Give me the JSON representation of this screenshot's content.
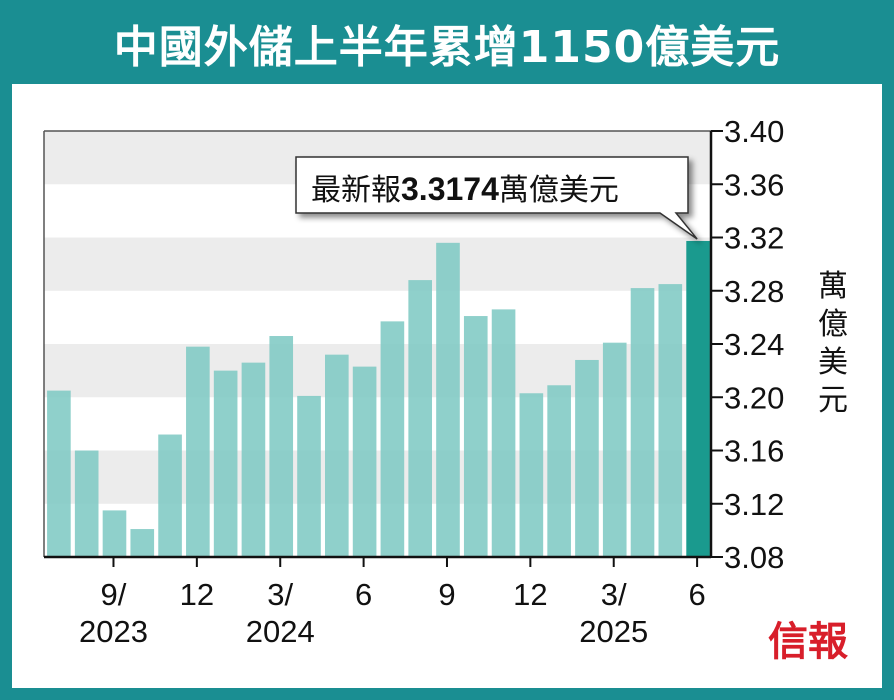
{
  "title": "中國外儲上半年累增1150億美元",
  "brand_text": "信報",
  "colors": {
    "frame": "#1a8e92",
    "bar": "#7fc9c4",
    "bar_highlight": "#1a9a8e",
    "band": "#ececec",
    "brand": "#d81e2a"
  },
  "chart_data": {
    "type": "bar",
    "unit_label": "萬億美元",
    "ylim": [
      3.08,
      3.4
    ],
    "y_ticks": [
      "3.40",
      "3.36",
      "3.32",
      "3.28",
      "3.24",
      "3.20",
      "3.16",
      "3.12",
      "3.08"
    ],
    "y_axis_side": "right",
    "grid": "alternating horizontal bands",
    "x_tick_labels": [
      {
        "index": 2,
        "lines": [
          "9/",
          "2023"
        ]
      },
      {
        "index": 5,
        "lines": [
          "12"
        ]
      },
      {
        "index": 8,
        "lines": [
          "3/",
          "2024"
        ]
      },
      {
        "index": 11,
        "lines": [
          "6"
        ]
      },
      {
        "index": 14,
        "lines": [
          "9"
        ]
      },
      {
        "index": 17,
        "lines": [
          "12"
        ]
      },
      {
        "index": 20,
        "lines": [
          "3/",
          "2025"
        ]
      },
      {
        "index": 23,
        "lines": [
          "6"
        ]
      }
    ],
    "values": [
      3.205,
      3.16,
      3.115,
      3.101,
      3.172,
      3.238,
      3.22,
      3.226,
      3.246,
      3.201,
      3.232,
      3.223,
      3.257,
      3.288,
      3.316,
      3.261,
      3.266,
      3.203,
      3.209,
      3.228,
      3.241,
      3.282,
      3.285,
      3.3174
    ],
    "highlight_index": 23,
    "annotation": {
      "prefix": "最新報",
      "value": "3.3174",
      "suffix": "萬億美元"
    }
  }
}
